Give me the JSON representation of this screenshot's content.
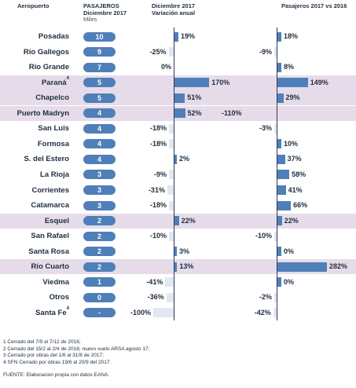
{
  "headers": {
    "aeropuerto": "Aeropuerto",
    "pasajeros_1": "PASAJEROS",
    "pasajeros_2": "Diciembre 2017",
    "pasajeros_3": "Miles",
    "variacion_1": "Diciembre 2017",
    "variacion_2": "Variación anual",
    "comparacion": "Pasajeros 2017 vs 2016"
  },
  "chart_data": {
    "type": "bar",
    "categories": [
      "Posadas",
      "Río Gallegos",
      "Río Grande",
      "Paraná",
      "Chapelco",
      "Puerto Madryn",
      "San Luis",
      "Formosa",
      "S. del Estero",
      "La Rioja",
      "Corrientes",
      "Catamarca",
      "Esquel",
      "San Rafael",
      "Santa Rosa",
      "Río Cuarto",
      "Viedma",
      "Otros",
      "Santa Fe"
    ],
    "footnote_marks": [
      "",
      "",
      "",
      "4",
      "",
      "",
      "",
      "",
      "",
      "",
      "",
      "",
      "",
      "",
      "",
      "",
      "",
      "",
      "4"
    ],
    "highlighted": [
      false,
      false,
      false,
      true,
      true,
      true,
      false,
      false,
      false,
      false,
      false,
      false,
      true,
      false,
      false,
      true,
      false,
      false,
      false
    ],
    "pasajeros_miles": [
      "10",
      "9",
      "7",
      "5",
      "5",
      "4",
      "4",
      "4",
      "4",
      "3",
      "3",
      "3",
      "2",
      "2",
      "2",
      "2",
      "1",
      "0",
      "-"
    ],
    "series": [
      {
        "name": "Variación anual",
        "values": [
          19,
          -25,
          0,
          170,
          51,
          52,
          -18,
          -18,
          2,
          -9,
          -31,
          -18,
          22,
          -10,
          3,
          13,
          -41,
          -36,
          -100
        ],
        "labels": [
          "19%",
          "-25%",
          "0%",
          "170%",
          "51%",
          "52%",
          "-18%",
          "-18%",
          "2%",
          "-9%",
          "-31%",
          "-18%",
          "22%",
          "-10%",
          "3%",
          "13%",
          "-41%",
          "-36%",
          "-100%"
        ]
      },
      {
        "name": "Pasajeros 2017 vs 2016",
        "values": [
          18,
          -9,
          8,
          149,
          29,
          -110,
          -3,
          10,
          37,
          58,
          41,
          66,
          22,
          -10,
          0,
          282,
          0,
          -2,
          -42
        ],
        "labels": [
          "18%",
          "-9%",
          "8%",
          "149%",
          "29%",
          "-110%",
          "-3%",
          "10%",
          "37%",
          "58%",
          "41%",
          "66%",
          "22%",
          "-10%",
          "0%",
          "282%",
          "0%",
          "-2%",
          "-42%"
        ]
      }
    ]
  },
  "footnotes": [
    "1 Cerrado del 7/9 al 7/12 de 2016;",
    "2 Cerrado del 15/2 al 2/4 de 2016; nuevo vuelo ARSA agosto 17;",
    "3 Cerrado por obras del 1/6 al 31/8 de 2017;",
    "4 SFN Cerrado por obras 19/6 al 20/9 del 2017."
  ],
  "fuente": "FUENTE: Elaboracion propia con datos EANA."
}
